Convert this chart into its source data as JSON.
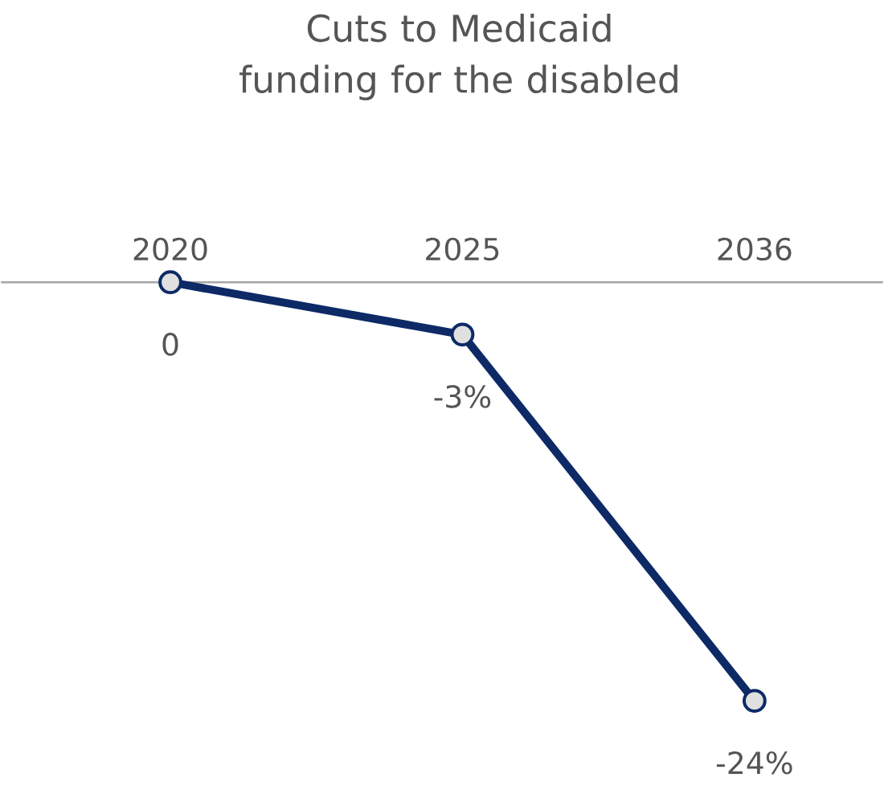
{
  "chart_data": {
    "type": "line",
    "title": "Cuts to Medicaid funding for the disabled",
    "categories": [
      "2020",
      "2025",
      "2036"
    ],
    "values": [
      0,
      -3,
      -24
    ],
    "value_labels": [
      "0",
      "-3%",
      "-24%"
    ],
    "color": "#0d2a66",
    "marker": "circle",
    "line_style": "solid",
    "tick_labels": "x"
  }
}
